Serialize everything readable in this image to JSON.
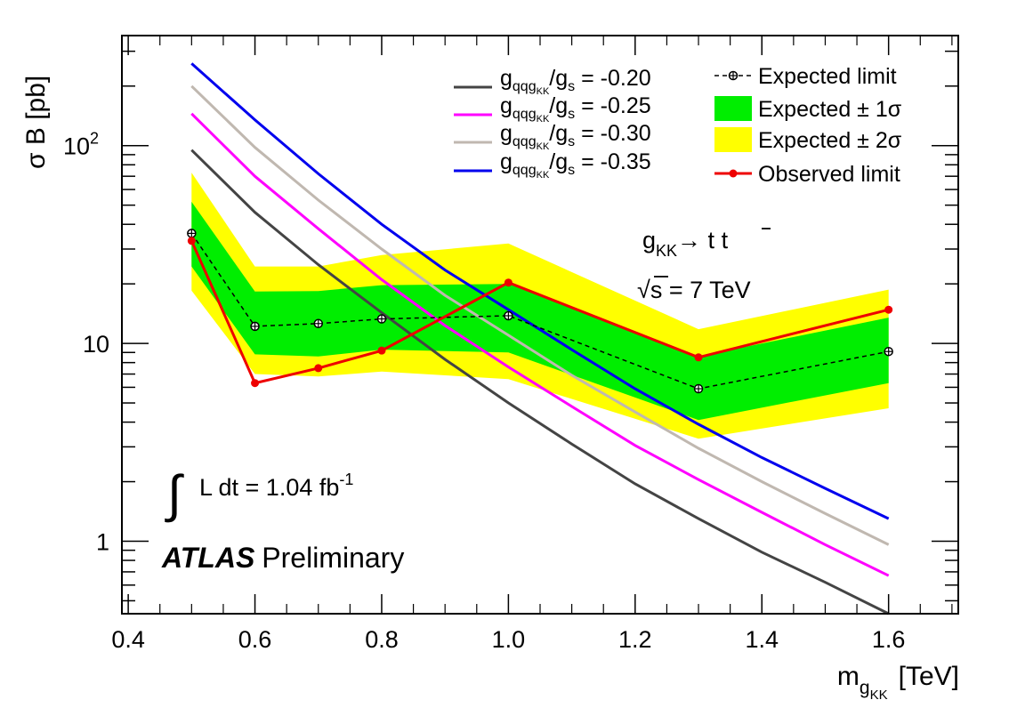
{
  "chart_data": {
    "type": "line",
    "title": "",
    "xlabel": {
      "main": "m",
      "sub": "g",
      "subsub": "KK",
      "unit": "[TeV]"
    },
    "ylabel": "σ B [pb]",
    "xlim": [
      0.39,
      1.71
    ],
    "ylim": [
      0.43,
      360
    ],
    "yscale": "log",
    "x_ticks": [
      {
        "value": 0.4,
        "label": "0.4"
      },
      {
        "value": 0.6,
        "label": "0.6"
      },
      {
        "value": 0.8,
        "label": "0.8"
      },
      {
        "value": 1.0,
        "label": "1.0"
      },
      {
        "value": 1.2,
        "label": "1.2"
      },
      {
        "value": 1.4,
        "label": "1.4"
      },
      {
        "value": 1.6,
        "label": "1.6"
      }
    ],
    "y_ticks": [
      {
        "value": 1,
        "base": "1",
        "exp": ""
      },
      {
        "value": 10,
        "base": "10",
        "exp": ""
      },
      {
        "value": 100,
        "base": "10",
        "exp": "2"
      }
    ],
    "grid": false,
    "legend_position": "top-right",
    "band_2sigma": {
      "name": "Expected ± 2σ",
      "color": "#ffff00",
      "x": [
        0.5,
        0.6,
        0.7,
        0.8,
        1.0,
        1.3,
        1.6
      ],
      "low": [
        18.5,
        7.0,
        6.8,
        7.2,
        6.6,
        3.3,
        4.7
      ],
      "high": [
        73,
        24.5,
        24.5,
        28,
        32,
        11.8,
        18.7
      ]
    },
    "band_1sigma": {
      "name": "Expected ± 1σ",
      "color": "#00ee00",
      "x": [
        0.5,
        0.6,
        0.7,
        0.8,
        1.0,
        1.3,
        1.6
      ],
      "low": [
        24.5,
        8.8,
        8.6,
        9.3,
        9.0,
        4.1,
        6.3
      ],
      "high": [
        52,
        18.3,
        18.4,
        19.7,
        20.0,
        8.6,
        13.5
      ]
    },
    "expected": {
      "name": "Expected limit",
      "color": "#000000",
      "x": [
        0.5,
        0.6,
        0.7,
        0.8,
        1.0,
        1.3,
        1.6
      ],
      "y": [
        36,
        12.2,
        12.6,
        13.3,
        13.8,
        5.9,
        9.1
      ]
    },
    "observed": {
      "name": "Observed limit",
      "color": "#ee0000",
      "x": [
        0.5,
        0.6,
        0.7,
        0.8,
        1.0,
        1.3,
        1.6
      ],
      "y": [
        33,
        6.3,
        7.5,
        9.2,
        20.3,
        8.5,
        14.8
      ]
    },
    "theory_x": [
      0.5,
      0.6,
      0.7,
      0.8,
      0.9,
      1.0,
      1.1,
      1.2,
      1.3,
      1.4,
      1.5,
      1.6
    ],
    "theory_series": [
      {
        "sym": "g",
        "sub": "qqg",
        "subsub": "KK",
        "ratio": "/g",
        "ratio_sub": "s",
        "value": " = -0.20",
        "color": "#444444",
        "y": [
          95,
          46,
          25,
          14.3,
          8.3,
          5.0,
          3.1,
          1.95,
          1.3,
          0.88,
          0.62,
          0.43
        ]
      },
      {
        "sym": "g",
        "sub": "qqg",
        "subsub": "KK",
        "ratio": "/g",
        "ratio_sub": "s",
        "value": " = -0.25",
        "color": "#ff00ff",
        "y": [
          145,
          70,
          38,
          21,
          12.3,
          7.6,
          4.8,
          3.05,
          2.05,
          1.4,
          0.96,
          0.67
        ]
      },
      {
        "sym": "g",
        "sub": "qqg",
        "subsub": "KK",
        "ratio": "/g",
        "ratio_sub": "s",
        "value": " = -0.30",
        "color": "#c0b8b0",
        "y": [
          200,
          98,
          53,
          30,
          17.5,
          11.0,
          6.9,
          4.5,
          2.95,
          2.0,
          1.38,
          0.96
        ]
      },
      {
        "sym": "g",
        "sub": "qqg",
        "subsub": "KK",
        "ratio": "/g",
        "ratio_sub": "s",
        "value": " = -0.35",
        "color": "#0000ee",
        "y": [
          260,
          135,
          72,
          40,
          23.5,
          14.8,
          9.3,
          5.9,
          3.9,
          2.65,
          1.85,
          1.3
        ]
      }
    ],
    "annotations": {
      "process_main": "g",
      "process_sub": "KK",
      "process_arrow": "→ t ",
      "process_tbar": "t",
      "energy_sqrt": "√",
      "energy_text": "s = 7 TeV",
      "lumi_integral": "∫",
      "lumi_text": "L dt = 1.04 fb",
      "lumi_exp": "-1",
      "experiment": "ATLAS",
      "experiment_status": "Preliminary"
    }
  }
}
